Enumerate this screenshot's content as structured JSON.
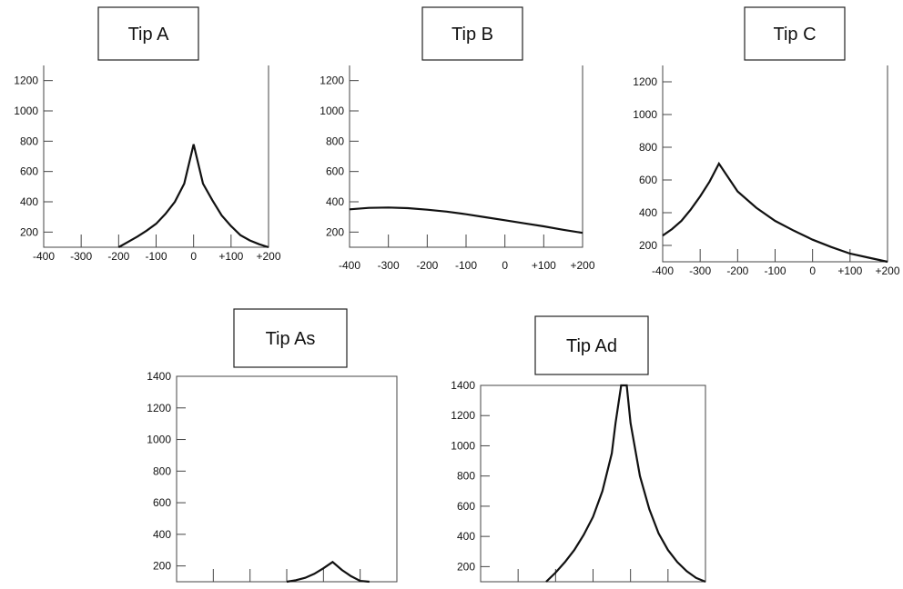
{
  "chart_data": [
    {
      "type": "line",
      "title": "Tip A",
      "x": [
        -200,
        -175,
        -150,
        -125,
        -100,
        -75,
        -50,
        -25,
        0,
        25,
        50,
        75,
        100,
        125,
        150,
        175,
        200
      ],
      "y": [
        100,
        135,
        170,
        210,
        255,
        320,
        400,
        520,
        780,
        520,
        410,
        310,
        240,
        180,
        145,
        120,
        100
      ],
      "yticks": [
        200,
        400,
        600,
        800,
        1000,
        1200
      ],
      "xtick_labels": [
        "-400",
        "-300",
        "-200",
        "-100",
        "0",
        "+100",
        "+200"
      ],
      "xlim": [
        -400,
        200
      ],
      "ylim": [
        100,
        1300
      ]
    },
    {
      "type": "line",
      "title": "Tip B",
      "x": [
        -400,
        -350,
        -300,
        -250,
        -200,
        -150,
        -100,
        -50,
        0,
        50,
        100,
        150,
        200
      ],
      "y": [
        350,
        360,
        362,
        358,
        348,
        335,
        318,
        298,
        278,
        258,
        238,
        215,
        195
      ],
      "yticks": [
        200,
        400,
        600,
        800,
        1000,
        1200
      ],
      "xtick_labels": [
        "-400",
        "-300",
        "-200",
        "-100",
        "0",
        "+100",
        "+200"
      ],
      "xlim": [
        -400,
        200
      ],
      "ylim": [
        100,
        1300
      ]
    },
    {
      "type": "line",
      "title": "Tip C",
      "x": [
        -400,
        -375,
        -350,
        -325,
        -300,
        -275,
        -250,
        -200,
        -150,
        -100,
        -50,
        0,
        50,
        100,
        150,
        200
      ],
      "y": [
        260,
        300,
        350,
        420,
        500,
        590,
        700,
        530,
        430,
        350,
        290,
        235,
        190,
        150,
        125,
        100
      ],
      "yticks": [
        200,
        400,
        600,
        800,
        1000,
        1200
      ],
      "xtick_labels": [
        "-400",
        "-300",
        "-200",
        "-100",
        "0",
        "+100",
        "+200"
      ],
      "xlim": [
        -400,
        200
      ],
      "ylim": [
        100,
        1300
      ]
    },
    {
      "type": "line",
      "title": "Tip As",
      "x": [
        -100,
        -75,
        -50,
        -25,
        0,
        25,
        50,
        75,
        100,
        125
      ],
      "y": [
        100,
        110,
        125,
        150,
        185,
        225,
        175,
        135,
        105,
        100
      ],
      "yticks": [
        200,
        400,
        600,
        800,
        1000,
        1200,
        1400
      ],
      "xtick_labels": [],
      "xlim": [
        -400,
        200
      ],
      "ylim": [
        100,
        1400
      ]
    },
    {
      "type": "line",
      "title": "Tip Ad",
      "x": [
        -225,
        -200,
        -175,
        -150,
        -125,
        -100,
        -75,
        -50,
        -40,
        -25,
        -10,
        0,
        25,
        50,
        75,
        100,
        125,
        150,
        175,
        200
      ],
      "y": [
        100,
        160,
        230,
        310,
        410,
        530,
        700,
        950,
        1150,
        1400,
        1400,
        1150,
        800,
        580,
        420,
        310,
        230,
        170,
        125,
        100
      ],
      "yticks": [
        200,
        400,
        600,
        800,
        1000,
        1200,
        1400
      ],
      "xtick_labels": [],
      "xlim": [
        -400,
        200
      ],
      "ylim": [
        100,
        1400
      ]
    }
  ]
}
